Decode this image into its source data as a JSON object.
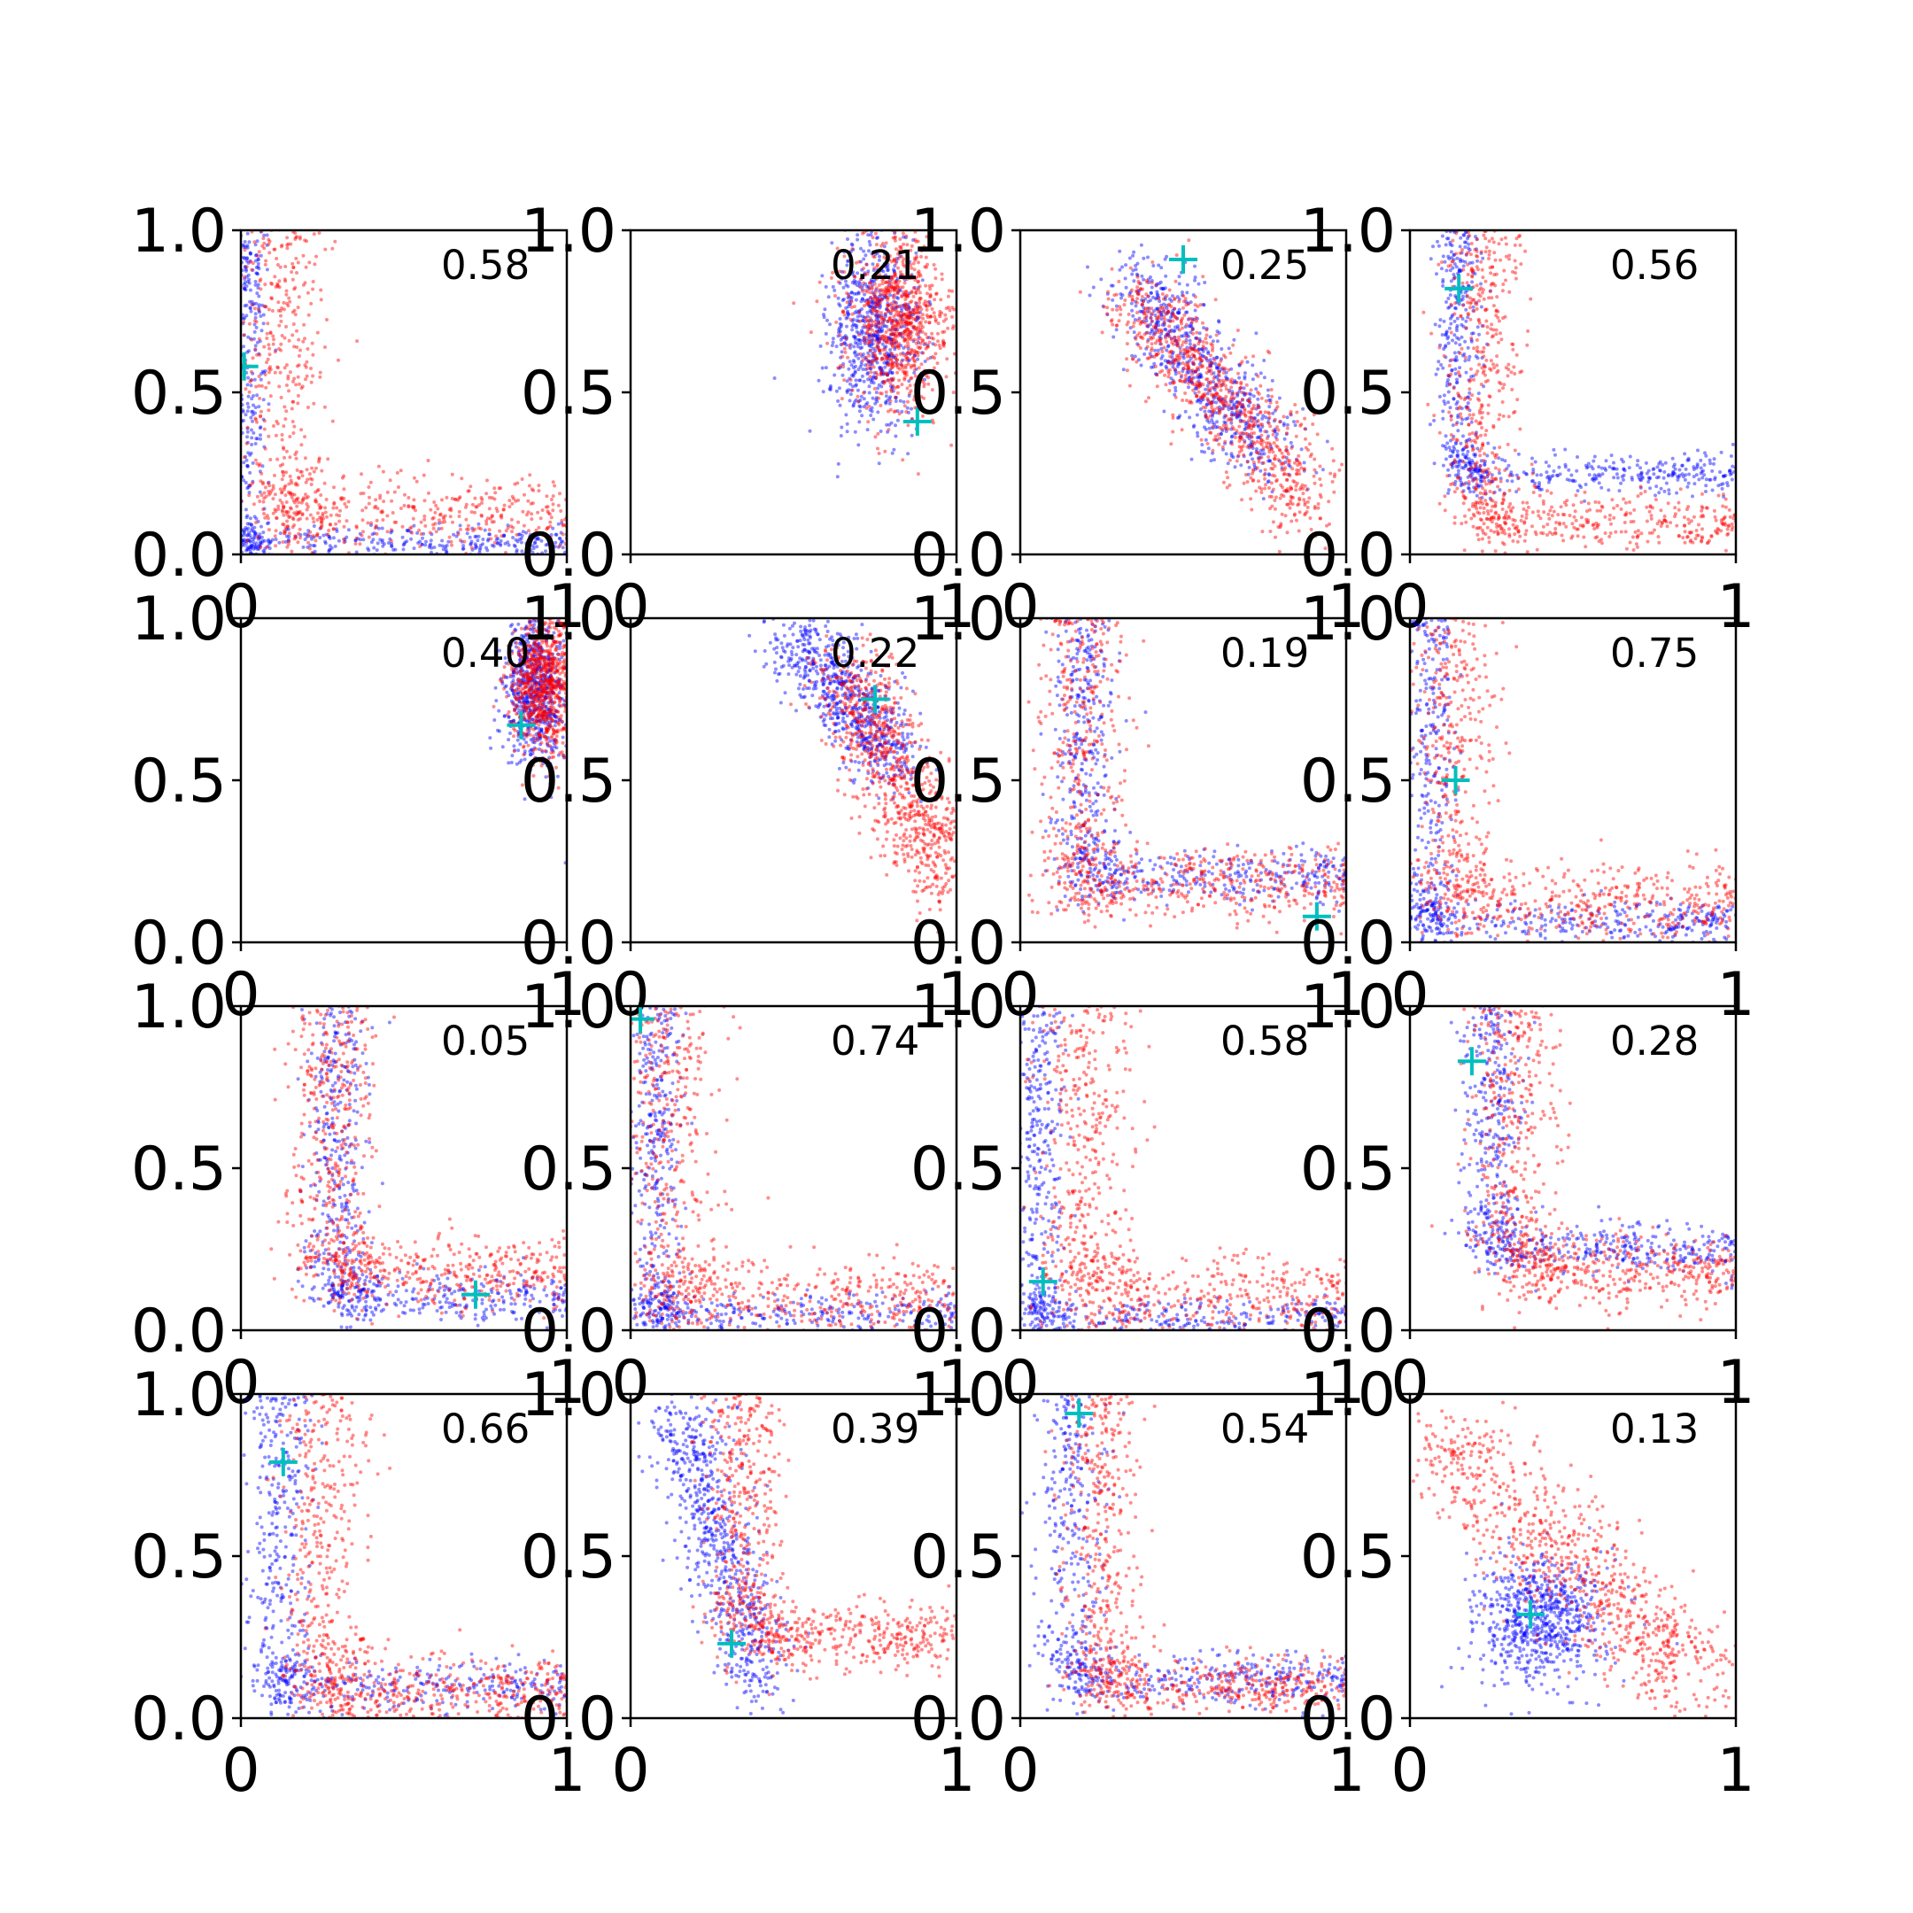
{
  "colors": {
    "series_a": "#0000ff",
    "series_b": "#ff0000",
    "marker": "#00bfbf",
    "axes": "#000000"
  },
  "chart_data": {
    "type": "scatter",
    "layout": "4x4 grid of subplots",
    "xlim": [
      0,
      1
    ],
    "ylim": [
      0,
      1
    ],
    "x_tick_labels": [
      "0",
      "1"
    ],
    "y_tick_labels": [
      "0.0",
      "0.5",
      "1.0"
    ],
    "grid": false,
    "legend": "none",
    "series_colors": [
      "blue",
      "red"
    ],
    "marker_style": "cyan plus",
    "panels": [
      {
        "annotation": "0.58",
        "marker": [
          0.01,
          0.58
        ],
        "blue": {
          "shape": "L",
          "corner": [
            0.02,
            0.04
          ],
          "inner": 0.03,
          "spread": 0.03
        },
        "red": {
          "shape": "L",
          "corner": [
            0.13,
            0.12
          ],
          "inner": 0.1,
          "spread": 0.07
        }
      },
      {
        "annotation": "0.21",
        "marker": [
          0.88,
          0.41
        ],
        "blue": {
          "shape": "cloud",
          "center": [
            0.75,
            0.68
          ],
          "sx": 0.07,
          "sy": 0.15
        },
        "red": {
          "shape": "cloud",
          "center": [
            0.82,
            0.72
          ],
          "sx": 0.08,
          "sy": 0.14
        }
      },
      {
        "annotation": "0.25",
        "marker": [
          0.5,
          0.91
        ],
        "blue": {
          "shape": "band",
          "from": [
            0.35,
            0.85
          ],
          "to": [
            0.75,
            0.3
          ],
          "spread": 0.07
        },
        "red": {
          "shape": "band",
          "from": [
            0.35,
            0.8
          ],
          "to": [
            0.9,
            0.15
          ],
          "spread": 0.07
        }
      },
      {
        "annotation": "0.56",
        "marker": [
          0.15,
          0.82
        ],
        "blue": {
          "shape": "L",
          "corner": [
            0.15,
            0.25
          ],
          "inner": 0.1,
          "spread": 0.04
        },
        "red": {
          "shape": "L",
          "corner": [
            0.22,
            0.1
          ],
          "inner": 0.15,
          "spread": 0.06
        }
      },
      {
        "annotation": "0.40",
        "marker": [
          0.86,
          0.67
        ],
        "blue": {
          "shape": "cloud",
          "center": [
            0.9,
            0.78
          ],
          "sx": 0.05,
          "sy": 0.12
        },
        "red": {
          "shape": "cloud",
          "center": [
            0.93,
            0.8
          ],
          "sx": 0.05,
          "sy": 0.11
        }
      },
      {
        "annotation": "0.22",
        "marker": [
          0.75,
          0.75
        ],
        "blue": {
          "shape": "band",
          "from": [
            0.5,
            0.95
          ],
          "to": [
            0.82,
            0.55
          ],
          "spread": 0.06
        },
        "red": {
          "shape": "band",
          "from": [
            0.65,
            0.85
          ],
          "to": [
            0.97,
            0.2
          ],
          "spread": 0.07
        }
      },
      {
        "annotation": "0.19",
        "marker": [
          0.91,
          0.08
        ],
        "blue": {
          "shape": "L",
          "corner": [
            0.2,
            0.2
          ],
          "inner": 0.15,
          "spread": 0.05
        },
        "red": {
          "shape": "L",
          "corner": [
            0.18,
            0.18
          ],
          "inner": 0.1,
          "spread": 0.07
        }
      },
      {
        "annotation": "0.75",
        "marker": [
          0.14,
          0.5
        ],
        "blue": {
          "shape": "L",
          "corner": [
            0.06,
            0.06
          ],
          "inner": 0.05,
          "spread": 0.04
        },
        "red": {
          "shape": "L",
          "corner": [
            0.13,
            0.12
          ],
          "inner": 0.1,
          "spread": 0.07
        }
      },
      {
        "annotation": "0.05",
        "marker": [
          0.72,
          0.11
        ],
        "blue": {
          "shape": "L",
          "corner": [
            0.3,
            0.1
          ],
          "inner": 0.15,
          "spread": 0.05
        },
        "red": {
          "shape": "L",
          "corner": [
            0.28,
            0.18
          ],
          "inner": 0.15,
          "spread": 0.07
        }
      },
      {
        "annotation": "0.74",
        "marker": [
          0.03,
          0.96
        ],
        "blue": {
          "shape": "L",
          "corner": [
            0.08,
            0.05
          ],
          "inner": 0.06,
          "spread": 0.04
        },
        "red": {
          "shape": "L",
          "corner": [
            0.12,
            0.1
          ],
          "inner": 0.1,
          "spread": 0.08
        }
      },
      {
        "annotation": "0.58",
        "marker": [
          0.07,
          0.15
        ],
        "blue": {
          "shape": "L",
          "corner": [
            0.06,
            0.04
          ],
          "inner": 0.05,
          "spread": 0.04
        },
        "red": {
          "shape": "L",
          "corner": [
            0.2,
            0.1
          ],
          "inner": 0.15,
          "spread": 0.08
        }
      },
      {
        "annotation": "0.28",
        "marker": [
          0.19,
          0.83
        ],
        "blue": {
          "shape": "L",
          "corner": [
            0.25,
            0.25
          ],
          "inner": 0.15,
          "spread": 0.05
        },
        "red": {
          "shape": "L",
          "corner": [
            0.32,
            0.18
          ],
          "inner": 0.2,
          "spread": 0.07
        }
      },
      {
        "annotation": "0.66",
        "marker": [
          0.13,
          0.79
        ],
        "blue": {
          "shape": "L",
          "corner": [
            0.12,
            0.1
          ],
          "inner": 0.08,
          "spread": 0.05
        },
        "red": {
          "shape": "L",
          "corner": [
            0.25,
            0.08
          ],
          "inner": 0.15,
          "spread": 0.07
        }
      },
      {
        "annotation": "0.39",
        "marker": [
          0.31,
          0.23
        ],
        "blue": {
          "shape": "band",
          "from": [
            0.15,
            0.95
          ],
          "to": [
            0.4,
            0.1
          ],
          "spread": 0.06
        },
        "red": {
          "shape": "L",
          "corner": [
            0.35,
            0.25
          ],
          "inner": 0.25,
          "spread": 0.06
        }
      },
      {
        "annotation": "0.54",
        "marker": [
          0.18,
          0.94
        ],
        "blue": {
          "shape": "L",
          "corner": [
            0.15,
            0.12
          ],
          "inner": 0.1,
          "spread": 0.05
        },
        "red": {
          "shape": "L",
          "corner": [
            0.25,
            0.1
          ],
          "inner": 0.15,
          "spread": 0.06
        }
      },
      {
        "annotation": "0.13",
        "marker": [
          0.37,
          0.32
        ],
        "blue": {
          "shape": "cloud",
          "center": [
            0.4,
            0.3
          ],
          "sx": 0.1,
          "sy": 0.1
        },
        "red": {
          "shape": "band",
          "from": [
            0.08,
            0.85
          ],
          "to": [
            0.9,
            0.1
          ],
          "spread": 0.09
        }
      }
    ]
  }
}
